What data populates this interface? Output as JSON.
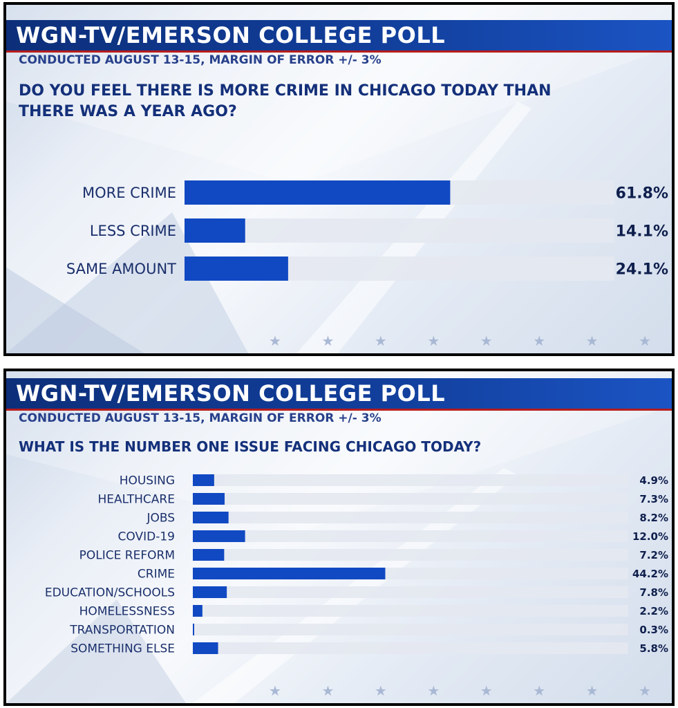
{
  "panels": [
    {
      "title": "WGN-TV/EMERSON COLLEGE POLL",
      "subtitle": "CONDUCTED AUGUST 13-15, MARGIN OF ERROR +/- 3%",
      "question": "DO YOU FEEL THERE IS MORE CRIME IN CHICAGO TODAY THAN\nTHERE WAS A YEAR AGO?"
    },
    {
      "title": "WGN-TV/EMERSON COLLEGE POLL",
      "subtitle": "CONDUCTED AUGUST 13-15, MARGIN OF ERROR +/- 3%",
      "question": "WHAT IS THE NUMBER ONE ISSUE FACING CHICAGO TODAY?"
    }
  ],
  "colors": {
    "bar": "#1149c2",
    "track": "#e4e8ef",
    "label": "#1a2f6b",
    "value": "#0f1f4d"
  },
  "chart_data": [
    {
      "type": "bar",
      "orientation": "horizontal",
      "title": "DO YOU FEEL THERE IS MORE CRIME IN CHICAGO TODAY THAN THERE WAS A YEAR AGO?",
      "categories": [
        "MORE CRIME",
        "LESS CRIME",
        "SAME AMOUNT"
      ],
      "values": [
        61.8,
        14.1,
        24.1
      ],
      "value_labels": [
        "61.8%",
        "14.1%",
        "24.1%"
      ],
      "xlim": [
        0,
        100
      ]
    },
    {
      "type": "bar",
      "orientation": "horizontal",
      "title": "WHAT IS THE NUMBER ONE ISSUE FACING CHICAGO TODAY?",
      "categories": [
        "HOUSING",
        "HEALTHCARE",
        "JOBS",
        "COVID-19",
        "POLICE REFORM",
        "CRIME",
        "EDUCATION/SCHOOLS",
        "HOMELESSNESS",
        "TRANSPORTATION",
        "SOMETHING ELSE"
      ],
      "values": [
        4.9,
        7.3,
        8.2,
        12.0,
        7.2,
        44.2,
        7.8,
        2.2,
        0.3,
        5.8
      ],
      "value_labels": [
        "4.9%",
        "7.3%",
        "8.2%",
        "12.0%",
        "7.2%",
        "44.2%",
        "7.8%",
        "2.2%",
        "0.3%",
        "5.8%"
      ],
      "xlim": [
        0,
        100
      ]
    }
  ]
}
